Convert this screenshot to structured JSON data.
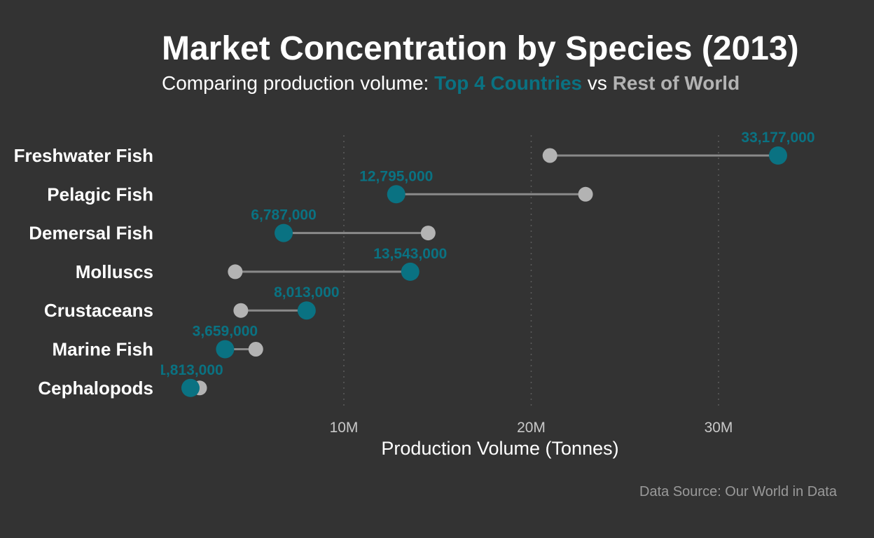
{
  "header": {
    "title": "Market Concentration by Species (2013)",
    "subtitle_prefix": "Comparing production volume:",
    "subtitle_top": "Top 4 Countries",
    "subtitle_vs": "vs",
    "subtitle_rest": "Rest of World"
  },
  "footer": {
    "source": "Data Source: Our World in Data"
  },
  "colors": {
    "top4": "#0a7282",
    "rest": "#b3b3b3",
    "connector": "#8a8a8a",
    "background": "#333333"
  },
  "chart_data": {
    "type": "dumbbell",
    "title": "Market Concentration by Species (2013)",
    "subtitle": "Comparing production volume: Top 4 Countries vs Rest of World",
    "xlabel": "Production Volume (Tonnes)",
    "ylabel": "",
    "xlim": [
      0,
      38000000
    ],
    "x_ticks": [
      10000000,
      20000000,
      30000000
    ],
    "x_tick_labels": [
      "10M",
      "20M",
      "30M"
    ],
    "grid": "vertical dotted",
    "categories": [
      "Freshwater Fish",
      "Pelagic Fish",
      "Demersal Fish",
      "Molluscs",
      "Crustaceans",
      "Marine Fish",
      "Cephalopods"
    ],
    "series": [
      {
        "name": "Top 4 Countries",
        "values": [
          33177000,
          12795000,
          6787000,
          13543000,
          8013000,
          3659000,
          1813000
        ],
        "labels": [
          "33,177,000",
          "12,795,000",
          "6,787,000",
          "13,543,000",
          "8,013,000",
          "3,659,000",
          "1,813,000"
        ]
      },
      {
        "name": "Rest of World",
        "values": [
          21000000,
          22900000,
          14500000,
          4200000,
          4500000,
          5300000,
          2300000
        ]
      }
    ]
  }
}
